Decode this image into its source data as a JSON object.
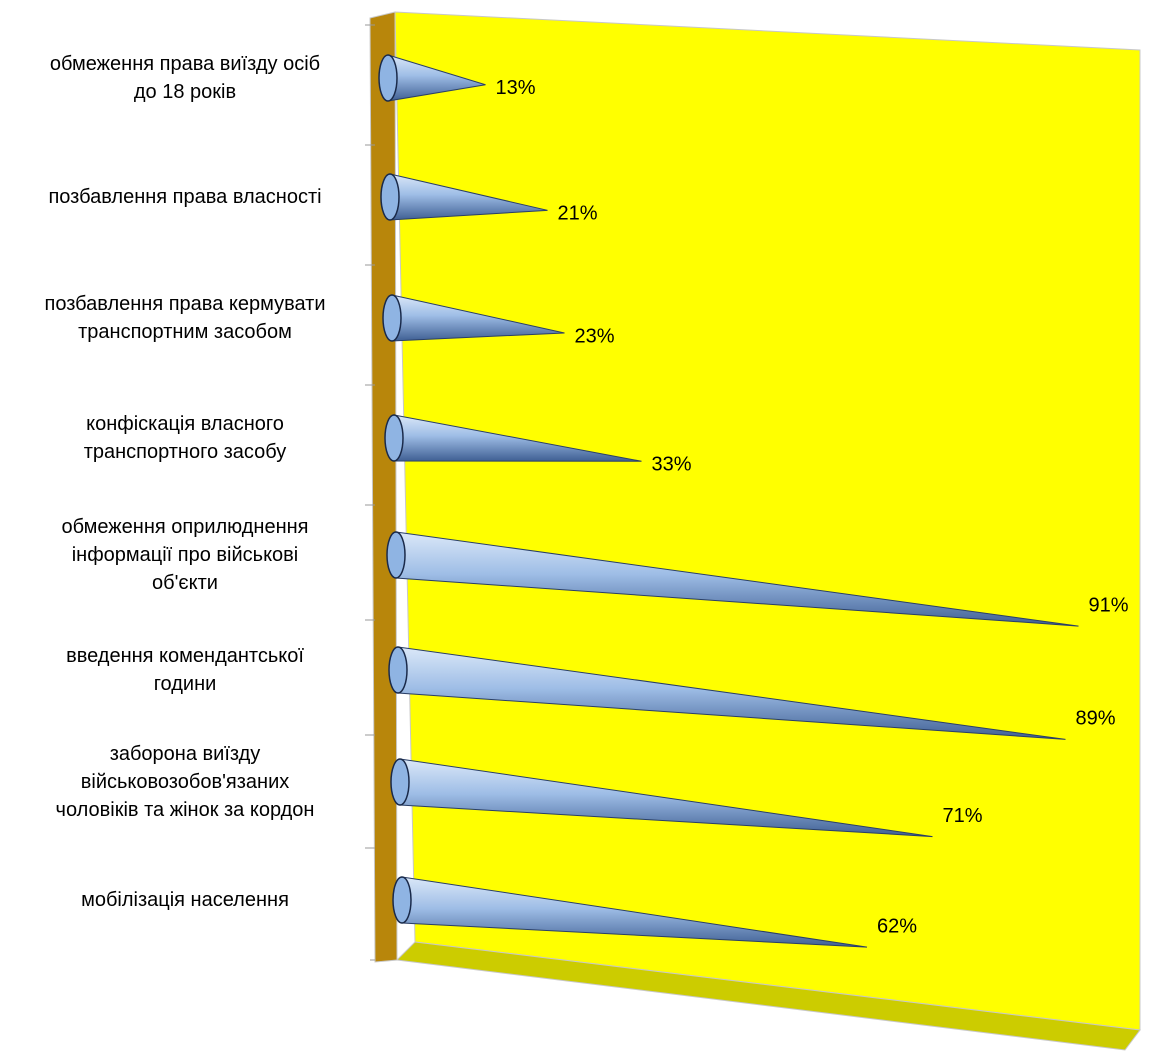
{
  "chart_data": {
    "type": "cone-bar",
    "categories": [
      "обмеження права виїзду осіб\nдо 18 років",
      "позбавлення права власності",
      "позбавлення права кермувати\nтранспортним засобом",
      "конфіскація власного\nтранспортного засобу",
      "обмеження оприлюднення\nінформації про військові\nоб'єкти",
      "введення комендантської\nгодини",
      "заборона виїзду\nвійськовозобов'язаних\nчоловіків та жінок за кордон",
      "мобілізація населення"
    ],
    "values": [
      13,
      21,
      23,
      33,
      91,
      89,
      71,
      62
    ],
    "value_labels": [
      "13%",
      "21%",
      "23%",
      "33%",
      "91%",
      "89%",
      "71%",
      "62%"
    ],
    "color": "#8fb4e3",
    "wall_color": "#ffff00"
  }
}
